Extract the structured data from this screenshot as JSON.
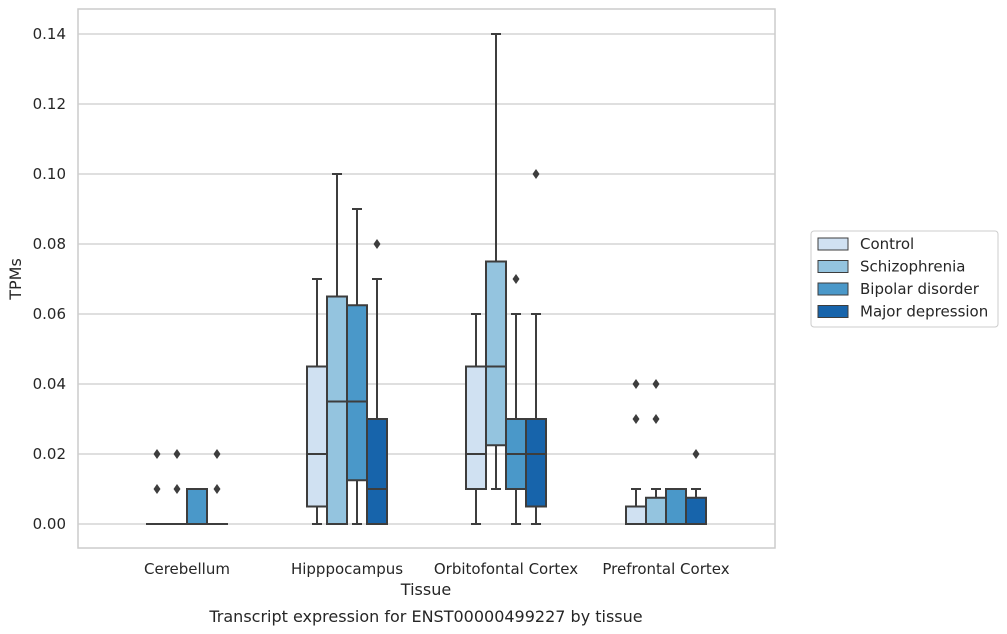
{
  "caption": "Transcript expression for ENST00000499227 by tissue",
  "chart_data": {
    "type": "boxplot",
    "xlabel": "Tissue",
    "ylabel": "TPMs",
    "ylim": [
      -0.007,
      0.147
    ],
    "yticks": [
      0.0,
      0.02,
      0.04,
      0.06,
      0.08,
      0.1,
      0.12,
      0.14
    ],
    "ytick_labels": [
      "0.00",
      "0.02",
      "0.04",
      "0.06",
      "0.08",
      "0.10",
      "0.12",
      "0.14"
    ],
    "grid": "horizontal",
    "legend_position": "right",
    "categories": [
      "Cerebellum",
      "Hipppocampus",
      "Orbitofontal Cortex",
      "Prefrontal Cortex"
    ],
    "series": [
      {
        "name": "Control",
        "color": "#d0e1f2",
        "boxes": [
          {
            "q1": 0.0,
            "median": 0.0,
            "q3": 0.0,
            "whisker_low": 0.0,
            "whisker_high": 0.0,
            "outliers": [
              0.01,
              0.02
            ]
          },
          {
            "q1": 0.005,
            "median": 0.02,
            "q3": 0.045,
            "whisker_low": 0.0,
            "whisker_high": 0.07,
            "outliers": []
          },
          {
            "q1": 0.01,
            "median": 0.02,
            "q3": 0.045,
            "whisker_low": 0.0,
            "whisker_high": 0.06,
            "outliers": []
          },
          {
            "q1": 0.0,
            "median": 0.0,
            "q3": 0.005,
            "whisker_low": 0.0,
            "whisker_high": 0.01,
            "outliers": [
              0.03,
              0.04
            ]
          }
        ]
      },
      {
        "name": "Schizophrenia",
        "color": "#94c4df",
        "boxes": [
          {
            "q1": 0.0,
            "median": 0.0,
            "q3": 0.0,
            "whisker_low": 0.0,
            "whisker_high": 0.0,
            "outliers": [
              0.01,
              0.02
            ]
          },
          {
            "q1": 0.0,
            "median": 0.035,
            "q3": 0.065,
            "whisker_low": 0.0,
            "whisker_high": 0.1,
            "outliers": []
          },
          {
            "q1": 0.0225,
            "median": 0.045,
            "q3": 0.075,
            "whisker_low": 0.01,
            "whisker_high": 0.14,
            "outliers": []
          },
          {
            "q1": 0.0,
            "median": 0.0,
            "q3": 0.0075,
            "whisker_low": 0.0,
            "whisker_high": 0.01,
            "outliers": [
              0.03,
              0.04
            ]
          }
        ]
      },
      {
        "name": "Bipolar disorder",
        "color": "#4a98c9",
        "boxes": [
          {
            "q1": 0.0,
            "median": 0.0,
            "q3": 0.01,
            "whisker_low": 0.0,
            "whisker_high": 0.01,
            "outliers": []
          },
          {
            "q1": 0.0125,
            "median": 0.035,
            "q3": 0.0625,
            "whisker_low": 0.0,
            "whisker_high": 0.09,
            "outliers": []
          },
          {
            "q1": 0.01,
            "median": 0.02,
            "q3": 0.03,
            "whisker_low": 0.0,
            "whisker_high": 0.06,
            "outliers": [
              0.07
            ]
          },
          {
            "q1": 0.0,
            "median": 0.0,
            "q3": 0.01,
            "whisker_low": 0.0,
            "whisker_high": 0.01,
            "outliers": []
          }
        ]
      },
      {
        "name": "Major depression",
        "color": "#1764ab",
        "boxes": [
          {
            "q1": 0.0,
            "median": 0.0,
            "q3": 0.0,
            "whisker_low": 0.0,
            "whisker_high": 0.0,
            "outliers": [
              0.01,
              0.02
            ]
          },
          {
            "q1": 0.0,
            "median": 0.01,
            "q3": 0.03,
            "whisker_low": 0.0,
            "whisker_high": 0.07,
            "outliers": [
              0.08
            ]
          },
          {
            "q1": 0.005,
            "median": 0.02,
            "q3": 0.03,
            "whisker_low": 0.0,
            "whisker_high": 0.06,
            "outliers": [
              0.1
            ]
          },
          {
            "q1": 0.0,
            "median": 0.0,
            "q3": 0.0075,
            "whisker_low": 0.0,
            "whisker_high": 0.01,
            "outliers": [
              0.02
            ]
          }
        ]
      }
    ]
  }
}
